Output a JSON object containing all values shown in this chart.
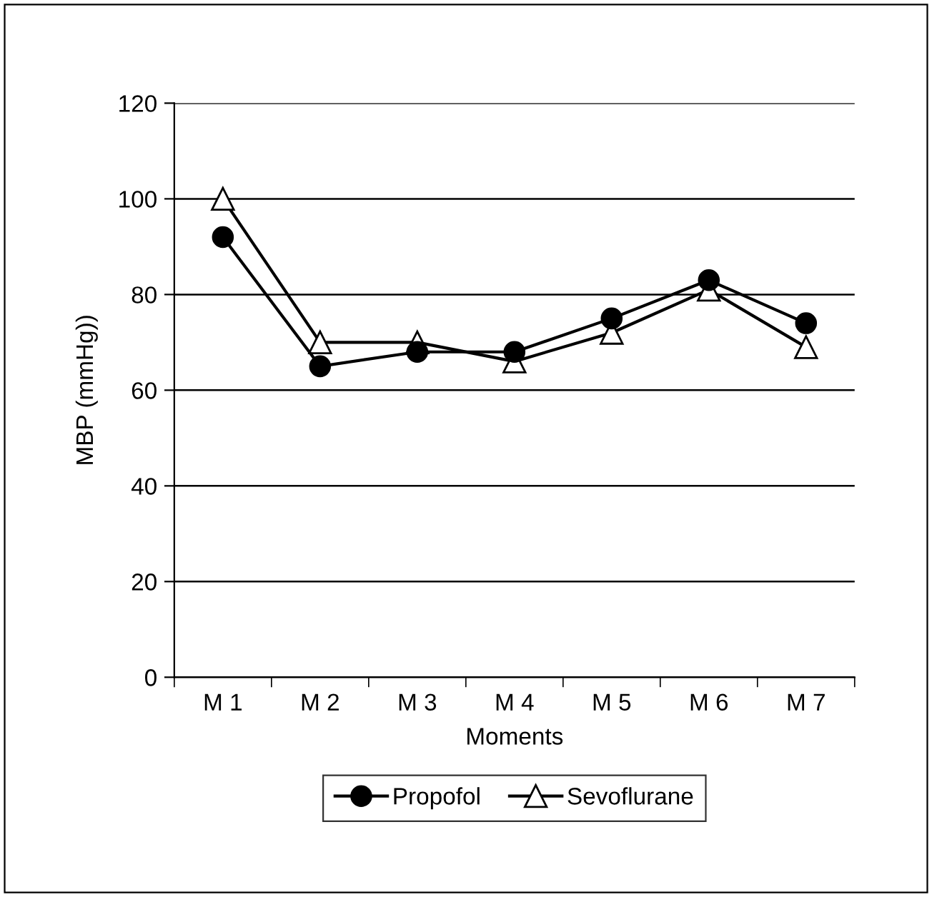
{
  "chart_data": {
    "type": "line",
    "xlabel": "Moments",
    "ylabel": "MBP (mmHg))",
    "categories": [
      "M 1",
      "M 2",
      "M 3",
      "M 4",
      "M 5",
      "M 6",
      "M 7"
    ],
    "series": [
      {
        "name": "Propofol",
        "color": "#000000",
        "marker": "circle",
        "values": [
          92,
          65,
          68,
          68,
          75,
          83,
          74
        ]
      },
      {
        "name": "Sevoflurane",
        "color": "#000000",
        "marker": "triangle",
        "values": [
          100,
          70,
          70,
          66,
          72,
          81,
          69
        ]
      }
    ],
    "ylim": [
      0,
      120
    ],
    "yticks": [
      0,
      20,
      40,
      60,
      80,
      100,
      120
    ],
    "grid": "y",
    "legend": "bottom",
    "line_style": "solid"
  }
}
